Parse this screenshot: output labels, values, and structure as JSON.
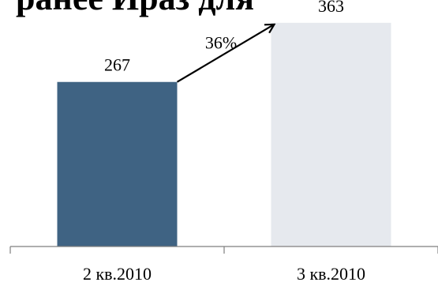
{
  "chart_data": {
    "type": "bar",
    "title": "",
    "xlabel": "",
    "ylabel": "",
    "categories": [
      "2 кв.2010",
      "3 кв.2010"
    ],
    "values": [
      267,
      363
    ],
    "data_labels": [
      "267",
      "363"
    ],
    "ylim": [
      0,
      400
    ],
    "grid": false,
    "legend": "none",
    "bar_colors": [
      "#3f6383",
      "#e6e9ee"
    ],
    "annotation": {
      "type": "growth-arrow",
      "from_category": "2 кв.2010",
      "to_category": "3 кв.2010",
      "label": "36%"
    }
  }
}
